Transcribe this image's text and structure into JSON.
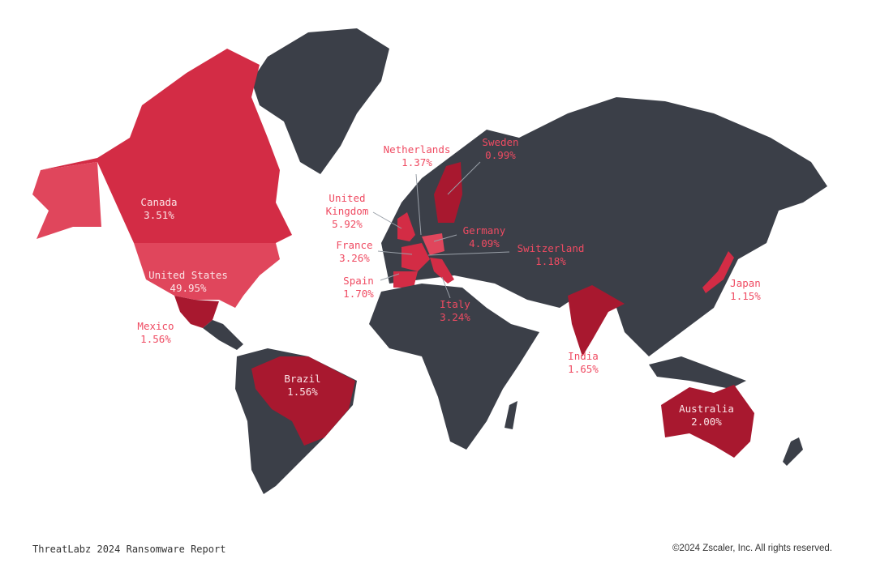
{
  "colors": {
    "land": "#3b3f48",
    "highlight_light": "#e0465c",
    "highlight_mid": "#d32c45",
    "highlight_dark": "#a8182f",
    "label": "#ef4b62"
  },
  "countries": [
    {
      "name": "Canada",
      "value": "3.51%"
    },
    {
      "name": "United States",
      "value": "49.95%"
    },
    {
      "name": "Mexico",
      "value": "1.56%"
    },
    {
      "name": "Brazil",
      "value": "1.56%"
    },
    {
      "name": "United Kingdom",
      "name_line1": "United",
      "name_line2": "Kingdom",
      "value": "5.92%"
    },
    {
      "name": "France",
      "value": "3.26%"
    },
    {
      "name": "Spain",
      "value": "1.70%"
    },
    {
      "name": "Netherlands",
      "value": "1.37%"
    },
    {
      "name": "Sweden",
      "value": "0.99%"
    },
    {
      "name": "Germany",
      "value": "4.09%"
    },
    {
      "name": "Switzerland",
      "value": "1.18%"
    },
    {
      "name": "Italy",
      "value": "3.24%"
    },
    {
      "name": "India",
      "value": "1.65%"
    },
    {
      "name": "Japan",
      "value": "1.15%"
    },
    {
      "name": "Australia",
      "value": "2.00%"
    }
  ],
  "footer": {
    "report_title": "ThreatLabz 2024 Ransomware Report",
    "copyright": "©2024 Zscaler, Inc. All rights reserved."
  }
}
